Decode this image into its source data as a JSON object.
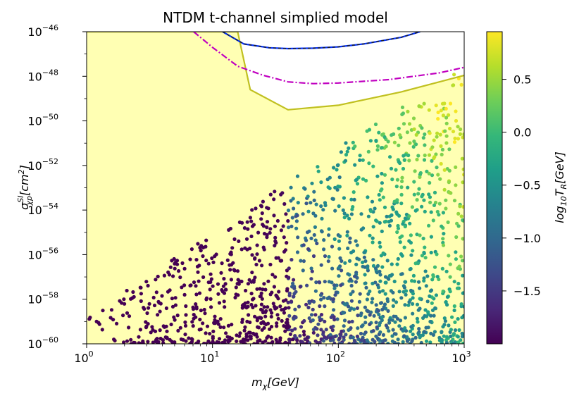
{
  "chart_data": {
    "type": "scatter",
    "title": "NTDM t-channel simplied model",
    "xlabel": "m_χ[GeV]",
    "ylabel": "σ_χp^SI [cm^2]",
    "xscale": "log",
    "yscale": "log",
    "xlim": [
      1,
      1000
    ],
    "ylim": [
      1e-60,
      1e-46
    ],
    "x_ticks": [
      {
        "value": 1,
        "base": "10",
        "exp": "0"
      },
      {
        "value": 10,
        "base": "10",
        "exp": "1"
      },
      {
        "value": 100,
        "base": "10",
        "exp": "2"
      },
      {
        "value": 1000,
        "base": "10",
        "exp": "3"
      }
    ],
    "y_ticks": [
      {
        "value": -60,
        "base": "10",
        "exp": "−60"
      },
      {
        "value": -58,
        "base": "10",
        "exp": "−58"
      },
      {
        "value": -56,
        "base": "10",
        "exp": "−56"
      },
      {
        "value": -54,
        "base": "10",
        "exp": "−54"
      },
      {
        "value": -52,
        "base": "10",
        "exp": "−52"
      },
      {
        "value": -50,
        "base": "10",
        "exp": "−50"
      },
      {
        "value": -48,
        "base": "10",
        "exp": "−48"
      },
      {
        "value": -46,
        "base": "10",
        "exp": "−46"
      }
    ],
    "colorbar": {
      "label": "log_10 T_R[GeV]",
      "range": [
        -2.0,
        0.95
      ],
      "ticks": [
        {
          "value": 0.5,
          "label": "0.5"
        },
        {
          "value": 0.0,
          "label": "0.0"
        },
        {
          "value": -0.5,
          "label": "−0.5"
        },
        {
          "value": -1.0,
          "label": "−1.0"
        },
        {
          "value": -1.5,
          "label": "−1.5"
        }
      ],
      "colormap_stops": [
        "#440154",
        "#482878",
        "#3e4989",
        "#31688e",
        "#26828e",
        "#1f9e89",
        "#35b779",
        "#6ece58",
        "#b5de2b",
        "#fde725"
      ]
    },
    "excluded_region": {
      "color": "#ffffb3",
      "boundary_log10x": [
        0,
        1.2,
        1.3,
        1.6,
        2.0,
        2.5,
        3.0
      ],
      "boundary_log10y": [
        -46,
        -46,
        -48.6,
        -49.5,
        -49.3,
        -48.7,
        -47.96
      ]
    },
    "curves": [
      {
        "name": "yellow-green limit",
        "color": "#c0c020",
        "style": "solid",
        "log10x": [
          0,
          1.2,
          1.3,
          1.6,
          2.0,
          2.5,
          3.0
        ],
        "log10y": [
          -46,
          -46,
          -48.6,
          -49.5,
          -49.3,
          -48.7,
          -47.96
        ]
      },
      {
        "name": "magenta dash-dot limit",
        "color": "#c000c0",
        "style": "dashdot",
        "log10x": [
          0.85,
          1.0,
          1.2,
          1.4,
          1.6,
          1.8,
          2.0,
          2.4,
          2.8,
          3.0
        ],
        "log10y": [
          -46,
          -46.7,
          -47.55,
          -47.95,
          -48.25,
          -48.33,
          -48.3,
          -48.15,
          -47.85,
          -47.6
        ]
      },
      {
        "name": "blue limit",
        "color": "#0030ff",
        "style": "solid",
        "log10x": [
          1.08,
          1.25,
          1.45,
          1.6,
          1.8,
          2.0,
          2.2,
          2.5,
          2.65
        ],
        "log10y": [
          -46,
          -46.55,
          -46.72,
          -46.76,
          -46.74,
          -46.68,
          -46.55,
          -46.25,
          -46
        ]
      },
      {
        "name": "dashed overlay limit",
        "color": "#202020",
        "style": "dashed",
        "log10x": [
          1.08,
          1.25,
          1.45,
          1.6,
          1.8,
          2.0,
          2.2,
          2.5,
          2.65
        ],
        "log10y": [
          -46,
          -46.55,
          -46.72,
          -46.76,
          -46.74,
          -46.68,
          -46.55,
          -46.25,
          -46
        ]
      }
    ],
    "scatter_generation": {
      "note": "approximately 1500 points; density grows with mass, log10 T_R correlates with mass and cross-section",
      "count": 1500,
      "seed": 7
    }
  }
}
